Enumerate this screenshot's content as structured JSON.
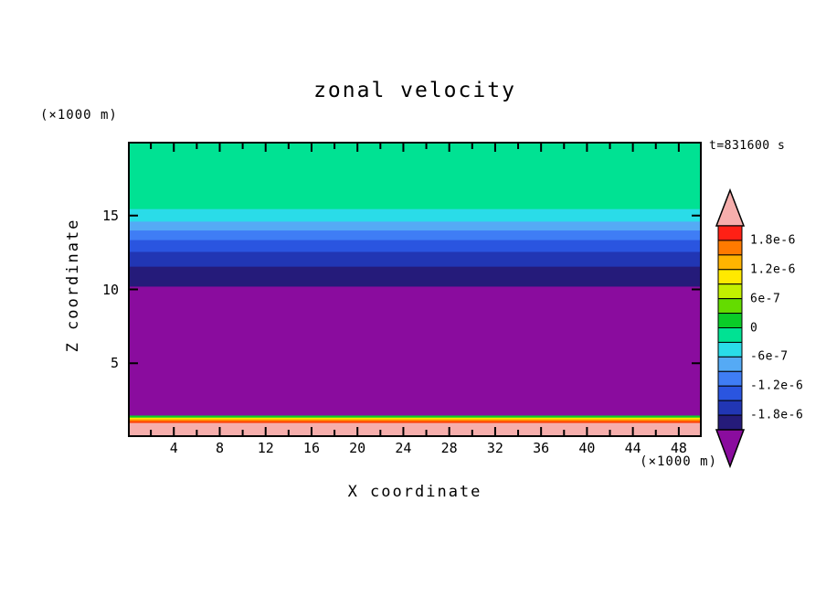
{
  "title": "zonal velocity",
  "timestamp": "t=831600 s",
  "x_axis": {
    "label": "X coordinate",
    "unit": "(×1000 m)"
  },
  "y_axis": {
    "label": "Z coordinate",
    "unit": "(×1000 m)"
  },
  "chart_data": {
    "type": "heatmap",
    "title": "zonal velocity",
    "xlabel": "X coordinate (×1000 m)",
    "ylabel": "Z coordinate (×1000 m)",
    "time_label": "t=831600 s",
    "x_range": [
      0,
      50
    ],
    "z_range": [
      0,
      20
    ],
    "x_major_ticks": [
      4,
      8,
      12,
      16,
      20,
      24,
      28,
      32,
      36,
      40,
      44,
      48
    ],
    "x_minor_ticks": [
      2,
      6,
      10,
      14,
      18,
      22,
      26,
      30,
      34,
      38,
      42,
      46,
      50
    ],
    "y_major_ticks": [
      5,
      10,
      15
    ],
    "grid": false,
    "legend_position": "right",
    "bands": [
      {
        "z_from": 0.0,
        "z_to": 1.02,
        "color": "#F6AEAC",
        "level": "> 2.1e-6"
      },
      {
        "z_from": 1.02,
        "z_to": 1.14,
        "color": "#FF3C00",
        "level": "1.8e-6 to 2.1e-6"
      },
      {
        "z_from": 1.14,
        "z_to": 1.26,
        "color": "#FF9100",
        "level": "1.5e-6 to 1.8e-6"
      },
      {
        "z_from": 1.26,
        "z_to": 1.38,
        "color": "#FFE900",
        "level": "9e-7 to 1.2e-6"
      },
      {
        "z_from": 1.38,
        "z_to": 1.52,
        "color": "#0ACC28",
        "level": "0 to 3e-7"
      },
      {
        "z_from": 1.52,
        "z_to": 10.25,
        "color": "#8A0C9E",
        "level": "< -2.1e-6"
      },
      {
        "z_from": 10.25,
        "z_to": 11.6,
        "color": "#251B7A",
        "level": "-2.1e-6 to -1.8e-6"
      },
      {
        "z_from": 11.6,
        "z_to": 12.6,
        "color": "#2136B4",
        "level": "-1.8e-6 to -1.5e-6"
      },
      {
        "z_from": 12.6,
        "z_to": 13.4,
        "color": "#2A55E0",
        "level": "-1.5e-6 to -1.2e-6"
      },
      {
        "z_from": 13.4,
        "z_to": 14.05,
        "color": "#3F7DF5",
        "level": "-1.2e-6 to -9e-7"
      },
      {
        "z_from": 14.05,
        "z_to": 14.65,
        "color": "#55AAF5",
        "level": "-9e-7 to -6e-7"
      },
      {
        "z_from": 14.65,
        "z_to": 15.5,
        "color": "#2ADCE8",
        "level": "-6e-7 to -3e-7"
      },
      {
        "z_from": 15.5,
        "z_to": 20.0,
        "color": "#00E293",
        "level": "-3e-7 to 0"
      }
    ],
    "colorbar": {
      "labels": [
        "1.8e-6",
        "1.2e-6",
        "6e-7",
        "0",
        "-6e-7",
        "-1.2e-6",
        "-1.8e-6"
      ],
      "band_colors": [
        "#FF2015",
        "#FF7A00",
        "#FFB400",
        "#FFE900",
        "#C3F000",
        "#64DC00",
        "#0ACC28",
        "#00E293",
        "#2ADCE8",
        "#55AAF5",
        "#3F7DF5",
        "#2A55E0",
        "#2136B4",
        "#251B7A"
      ],
      "over_color": "#F6AEAC",
      "under_color": "#8A0C9E",
      "outline_color": "#000000"
    }
  }
}
